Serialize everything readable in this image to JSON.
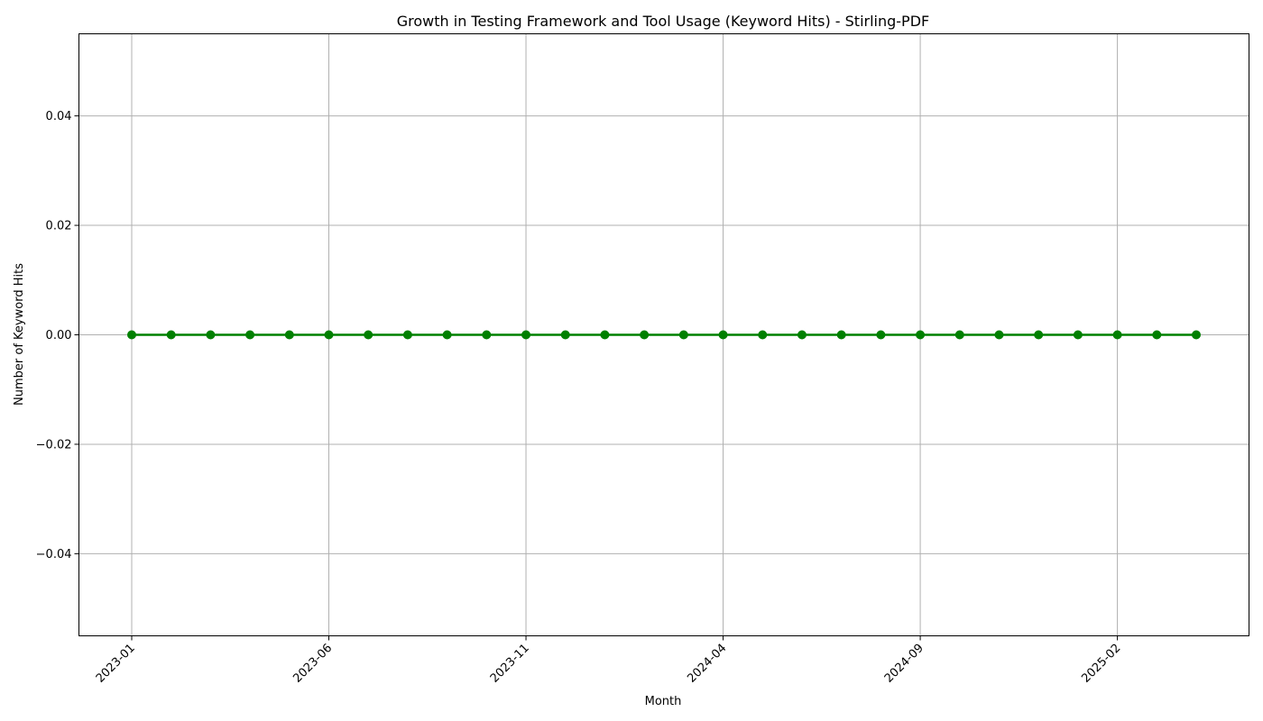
{
  "chart_data": {
    "type": "line",
    "title": "Growth in Testing Framework and Tool Usage (Keyword Hits) - Stirling-PDF",
    "xlabel": "Month",
    "ylabel": "Number of Keyword Hits",
    "x": [
      "2023-01",
      "2023-02",
      "2023-03",
      "2023-04",
      "2023-05",
      "2023-06",
      "2023-07",
      "2023-08",
      "2023-09",
      "2023-10",
      "2023-11",
      "2023-12",
      "2024-01",
      "2024-02",
      "2024-03",
      "2024-04",
      "2024-05",
      "2024-06",
      "2024-07",
      "2024-08",
      "2024-09",
      "2024-10",
      "2024-11",
      "2024-12",
      "2025-01",
      "2025-02",
      "2025-03",
      "2025-04"
    ],
    "series": [
      {
        "values": [
          0,
          0,
          0,
          0,
          0,
          0,
          0,
          0,
          0,
          0,
          0,
          0,
          0,
          0,
          0,
          0,
          0,
          0,
          0,
          0,
          0,
          0,
          0,
          0,
          0,
          0,
          0,
          0
        ],
        "color": "#008000",
        "marker": "circle"
      }
    ],
    "x_ticks": [
      "2023-01",
      "2023-06",
      "2023-11",
      "2024-04",
      "2024-09",
      "2025-02"
    ],
    "y_ticks": [
      -0.04,
      -0.02,
      0.0,
      0.02,
      0.04
    ],
    "y_tick_labels": [
      "−0.04",
      "−0.02",
      "0.00",
      "0.02",
      "0.04"
    ],
    "ylim": [
      -0.055,
      0.055
    ],
    "grid": true,
    "legend": "none"
  }
}
